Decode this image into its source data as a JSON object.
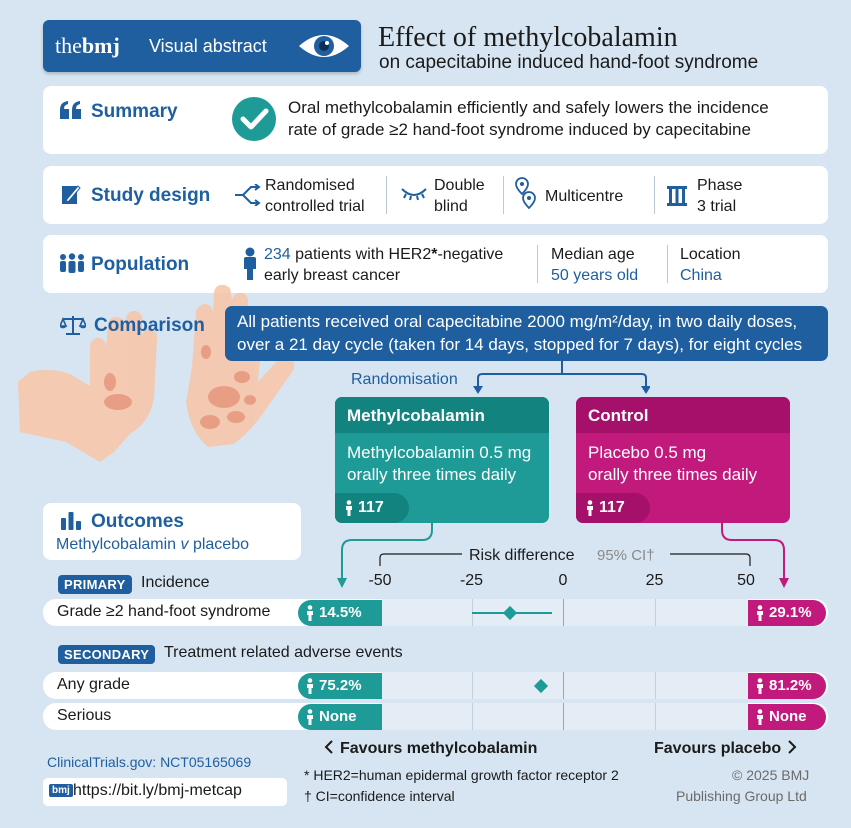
{
  "header": {
    "brand_the": "the",
    "brand_bmj": "bmj",
    "badge_label": "Visual abstract",
    "title": "Effect of methylcobalamin",
    "subtitle": "on capecitabine induced hand-foot syndrome",
    "icon": "eye-icon"
  },
  "summary": {
    "label": "Summary",
    "text_line1": "Oral methylcobalamin efficiently and safely lowers the incidence",
    "text_line2": "rate of grade ≥2 hand-foot syndrome induced by capecitabine"
  },
  "study_design": {
    "label": "Study design",
    "items": [
      {
        "icon": "randomise-icon",
        "line1": "Randomised",
        "line2": "controlled trial"
      },
      {
        "icon": "closed-eye-icon",
        "line1": "Double",
        "line2": "blind"
      },
      {
        "icon": "location-pins-icon",
        "line1": "Multicentre",
        "line2": ""
      },
      {
        "icon": "phase-icon",
        "line1": "Phase",
        "line2": "3 trial"
      }
    ]
  },
  "population": {
    "label": "Population",
    "count": "234",
    "desc_line1": " patients with HER2",
    "desc_star": "*",
    "desc_line1b": "-negative",
    "desc_line2": "early breast cancer",
    "age_label": "Median age",
    "age_value": "50 years old",
    "location_label": "Location",
    "location_value": "China"
  },
  "comparison": {
    "label": "Comparison",
    "line1": "All patients received oral capecitabine 2000 mg/m²/day, in two daily doses,",
    "line2": "over a 21 day cycle (taken for 14 days, stopped for 7 days), for eight cycles",
    "randomisation": "Randomisation"
  },
  "arms": {
    "treatment": {
      "title": "Methylcobalamin",
      "line1": "Methylcobalamin 0.5 mg",
      "line2": "orally three times daily",
      "n": "117",
      "color": "#1e9b97"
    },
    "control": {
      "title": "Control",
      "line1": "Placebo 0.5 mg",
      "line2": "orally three times daily",
      "n": "117",
      "color": "#c2197d"
    }
  },
  "outcomes": {
    "label": "Outcomes",
    "sub_a": "Methylcobalamin ",
    "sub_v": "v",
    "sub_b": " placebo",
    "primary_tag": "PRIMARY",
    "primary_label": "Incidence",
    "secondary_tag": "SECONDARY",
    "secondary_label": "Treatment related adverse events",
    "risk_title": "Risk difference",
    "ci_label": "95% CI†",
    "axis_ticks": [
      "-50",
      "-25",
      "0",
      "25",
      "50"
    ],
    "rows": [
      {
        "name": "Grade ≥2 hand-foot syndrome",
        "treat": "14.5%",
        "ctrl": "29.1%"
      },
      {
        "name": "Any grade",
        "treat": "75.2%",
        "ctrl": "81.2%"
      },
      {
        "name": "Serious",
        "treat": "None",
        "ctrl": "None"
      }
    ],
    "favours_left": "Favours methylcobalamin",
    "favours_right": "Favours placebo"
  },
  "chart_data": {
    "type": "scatter",
    "xlabel": "Risk difference",
    "xlim": [
      -50,
      50
    ],
    "x_ticks": [
      -50,
      -25,
      0,
      25,
      50
    ],
    "points": [
      {
        "row": "Grade ≥2 hand-foot syndrome",
        "estimate": -14.6,
        "ci_low": -25,
        "ci_high": -3
      },
      {
        "row": "Any grade",
        "estimate": -6,
        "ci_low": null,
        "ci_high": null
      }
    ]
  },
  "footer": {
    "trial_reg": "ClinicalTrials.gov: NCT05165069",
    "url_badge": "bmj",
    "url": "https://bit.ly/bmj-metcap",
    "note1": "* HER2=human epidermal growth factor receptor 2",
    "note2": "† CI=confidence interval",
    "copyright_line1": "© 2025 BMJ",
    "copyright_line2": "Publishing Group Ltd"
  },
  "colors": {
    "blue": "#1f5fa0",
    "teal": "#1e9b97",
    "magenta": "#c2197d",
    "background": "#d6e5f1"
  }
}
